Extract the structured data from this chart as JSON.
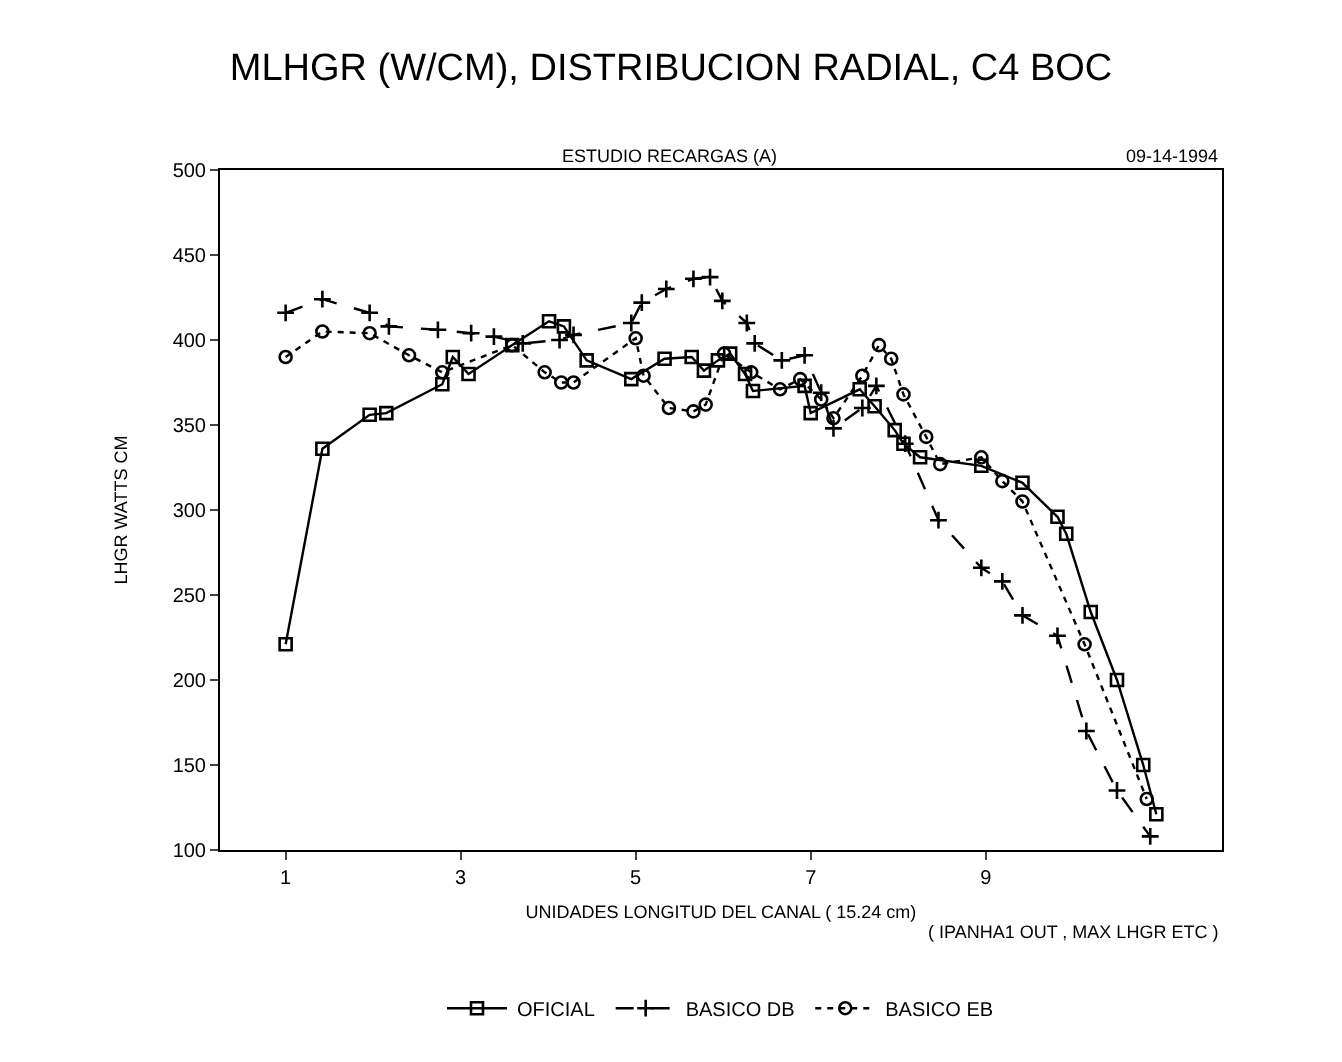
{
  "chart_data": {
    "type": "line",
    "title": "MLHGR (W/CM), DISTRIBUCION RADIAL, C4 BOC",
    "subtitle": "ESTUDIO RECARGAS (A)",
    "xlabel": "UNIDADES LONGITUD DEL CANAL ( 15.24 cm)",
    "ylabel": "LHGR WATTS CM",
    "annotations": [
      "09-14-1994",
      "( IPANHA1 OUT , MAX LHGR ETC )"
    ],
    "xlim": [
      0.25,
      11.7
    ],
    "xticks": [
      1,
      3,
      5,
      7,
      9
    ],
    "ylim": [
      100,
      500
    ],
    "yticks": [
      100,
      150,
      200,
      250,
      300,
      350,
      400,
      450,
      500
    ],
    "grid": false,
    "legend": "bottom",
    "series": [
      {
        "name": "OFICIAL",
        "color": "#000000",
        "marker": "square",
        "line_style": "solid",
        "x": [
          1,
          1.42,
          1.96,
          2.15,
          2.79,
          2.91,
          3.09,
          3.59,
          4.01,
          4.18,
          4.44,
          4.95,
          5.33,
          5.64,
          5.78,
          5.94,
          6.08,
          6.25,
          6.34,
          6.93,
          7,
          7.56,
          7.73,
          7.96,
          8.06,
          8.25,
          8.95,
          9.42,
          9.82,
          9.92,
          10.2,
          10.5,
          10.8,
          10.95
        ],
        "values": [
          221,
          336,
          356,
          357,
          374,
          390,
          380,
          397,
          411,
          408,
          388,
          377,
          389,
          390,
          382,
          388,
          392,
          380,
          370,
          373,
          357,
          371,
          361,
          347,
          339,
          331,
          326,
          316,
          296,
          286,
          240,
          200,
          150,
          121
        ]
      },
      {
        "name": "BASICO DB",
        "color": "#000000",
        "marker": "cross",
        "line_style": "dashed",
        "x": [
          1,
          1.42,
          1.96,
          2.18,
          2.74,
          3.12,
          3.38,
          3.71,
          4.13,
          4.29,
          4.95,
          5.07,
          5.35,
          5.66,
          5.85,
          5.99,
          6.27,
          6.36,
          6.67,
          6.93,
          7.12,
          7.26,
          7.59,
          7.75,
          8.08,
          8.46,
          8.95,
          9.19,
          9.42,
          9.82,
          10.15,
          10.5,
          10.88
        ],
        "values": [
          416,
          424,
          416,
          408,
          406,
          404,
          402,
          398,
          400,
          403,
          410,
          422,
          430,
          436,
          437,
          423,
          410,
          398,
          388,
          391,
          369,
          348,
          360,
          373,
          339,
          294,
          266,
          258,
          238,
          226,
          170,
          135,
          108
        ]
      },
      {
        "name": "BASICO EB",
        "color": "#000000",
        "marker": "circle",
        "line_style": "dotted",
        "x": [
          1,
          1.42,
          1.96,
          2.41,
          2.79,
          3.59,
          3.96,
          4.15,
          4.29,
          5,
          5.09,
          5.38,
          5.66,
          5.8,
          6.01,
          6.32,
          6.65,
          6.88,
          7.12,
          7.26,
          7.59,
          7.78,
          7.92,
          8.06,
          8.32,
          8.48,
          8.95,
          9.19,
          9.42,
          10.13,
          10.84
        ],
        "values": [
          390,
          405,
          404,
          391,
          381,
          397,
          381,
          375,
          375,
          401,
          379,
          360,
          358,
          362,
          392,
          381,
          371,
          377,
          365,
          354,
          379,
          397,
          389,
          368,
          343,
          327,
          331,
          317,
          305,
          221,
          130
        ]
      }
    ]
  }
}
